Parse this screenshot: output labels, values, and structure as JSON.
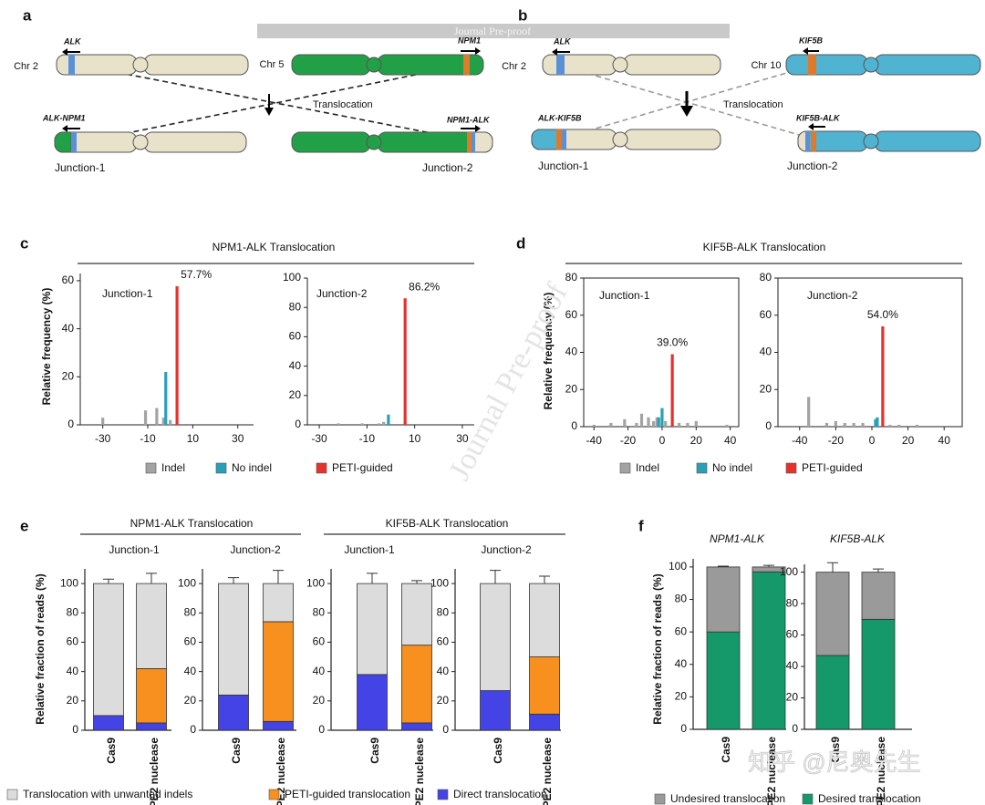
{
  "panel_labels": [
    "a",
    "b",
    "c",
    "d",
    "e",
    "f"
  ],
  "watermarks": [
    "Journal Pre-proof",
    "Journal Pre-proof",
    "知乎 @尼奥先生"
  ],
  "diagrams": [
    {
      "chr_left": "Chr 2",
      "gene_left": "ALK",
      "chr_right": "Chr 5",
      "gene_right": "NPM1",
      "arrow_label": "Translocation",
      "fusion_left": "ALK-NPM1",
      "fusion_right": "NPM1-ALK",
      "junction_left": "Junction-1",
      "junction_right": "Junction-2"
    },
    {
      "chr_left": "Chr 2",
      "gene_left": "ALK",
      "chr_right": "Chr 10",
      "gene_right": "KIF5B",
      "arrow_label": "Translocation",
      "fusion_left": "ALK-KIF5B",
      "fusion_right": "KIF5B-ALK",
      "junction_left": "Junction-1",
      "junction_right": "Junction-2"
    }
  ],
  "chart_data": [
    {
      "type": "histogram",
      "title": "NPM1-ALK Translocation",
      "ylabel": "Relative frequency (%)",
      "frame": "axes",
      "series": [
        {
          "name": "Indel",
          "color": "#a3a3a3"
        },
        {
          "name": "No indel",
          "color": "#2aa0b8"
        },
        {
          "name": "PETI-guided",
          "color": "#e8312a"
        }
      ],
      "subplots": [
        {
          "title": "Junction-1",
          "xlim": [
            -40,
            37
          ],
          "xticks": [
            -30,
            -10,
            10,
            30
          ],
          "ylim": [
            0,
            63
          ],
          "yticks": [
            0,
            20,
            40,
            60
          ],
          "series": [
            {
              "x": [
                -30,
                -11,
                -6,
                -3,
                0
              ],
              "values": [
                3,
                6,
                7,
                3,
                2
              ]
            },
            {
              "x": [
                -2
              ],
              "values": [
                22
              ]
            },
            {
              "x": [
                3
              ],
              "values": [
                57.7
              ],
              "value_labels": [
                "57.7%"
              ]
            }
          ]
        },
        {
          "title": "Junction-2",
          "xlim": [
            -35,
            35
          ],
          "xticks": [
            -30,
            -10,
            10,
            30
          ],
          "ylim": [
            0,
            100
          ],
          "yticks": [
            0,
            20,
            40,
            60,
            80,
            100
          ],
          "series": [
            {
              "x": [
                -22,
                -12,
                -5,
                -3
              ],
              "values": [
                1,
                1,
                1,
                2
              ]
            },
            {
              "x": [
                -1
              ],
              "values": [
                7
              ]
            },
            {
              "x": [
                6
              ],
              "values": [
                86.2
              ],
              "value_labels": [
                "86.2%"
              ]
            }
          ]
        }
      ]
    },
    {
      "type": "histogram",
      "title": "KIF5B-ALK Translocation",
      "ylabel": "Relative frequency (%)",
      "frame": "box",
      "series": [
        {
          "name": "Indel",
          "color": "#a3a3a3"
        },
        {
          "name": "No indel",
          "color": "#2aa0b8"
        },
        {
          "name": "PETI-guided",
          "color": "#e8312a"
        }
      ],
      "subplots": [
        {
          "title": "Junction-1",
          "xlim": [
            -46,
            45
          ],
          "xticks": [
            -40,
            -20,
            0,
            20,
            40
          ],
          "ylim": [
            0,
            80
          ],
          "yticks": [
            0,
            20,
            40,
            60,
            80
          ],
          "series": [
            {
              "x": [
                -40,
                -30,
                -22,
                -15,
                -12,
                -8,
                -5,
                -3,
                2,
                10,
                15,
                20,
                38
              ],
              "values": [
                1,
                2,
                4,
                2,
                7,
                5,
                3,
                5,
                3,
                2,
                2,
                3,
                1
              ]
            },
            {
              "x": [
                -2,
                0
              ],
              "values": [
                5,
                10
              ]
            },
            {
              "x": [
                6
              ],
              "values": [
                39.0
              ],
              "value_labels": [
                "39.0%"
              ]
            }
          ]
        },
        {
          "title": "Junction-2",
          "xlim": [
            -52,
            50
          ],
          "xticks": [
            -40,
            -20,
            0,
            20,
            40
          ],
          "ylim": [
            0,
            80
          ],
          "yticks": [
            0,
            20,
            40,
            60,
            80
          ],
          "series": [
            {
              "x": [
                -35,
                -25,
                -20,
                -15,
                -10,
                -5,
                10,
                15,
                25
              ],
              "values": [
                16,
                2,
                3,
                2,
                2,
                2,
                1,
                1,
                1
              ]
            },
            {
              "x": [
                2,
                3
              ],
              "values": [
                4,
                5
              ]
            },
            {
              "x": [
                6
              ],
              "values": [
                54.0
              ],
              "value_labels": [
                "54.0%"
              ]
            }
          ]
        }
      ]
    },
    {
      "type": "stacked-bar",
      "titles": [
        "NPM1-ALK Translocation",
        "KIF5B-ALK Translocation"
      ],
      "ylabel": "Relative fraction of reads (%)",
      "categories": [
        "Cas9",
        "PE2 nuclease"
      ],
      "series": [
        {
          "name": "Translocation with unwanted indels",
          "color": "#dcdcdc"
        },
        {
          "name": "PETI-guided translocation",
          "color": "#f7901e"
        },
        {
          "name": "Direct translocation",
          "color": "#4444e6"
        }
      ],
      "subplots": [
        {
          "title": "Junction-1",
          "ylim": [
            0,
            110
          ],
          "yticks": [
            0,
            20,
            40,
            60,
            80,
            100
          ],
          "series": [
            {
              "values": [
                90,
                58
              ],
              "errors": [
                3,
                7
              ]
            },
            {
              "values": [
                0,
                37
              ],
              "errors": [
                null,
                7
              ]
            },
            {
              "values": [
                10,
                5
              ],
              "errors": [
                4,
                1
              ]
            }
          ]
        },
        {
          "title": "Junction-2",
          "ylim": [
            0,
            110
          ],
          "yticks": [
            0,
            20,
            40,
            60,
            80,
            100
          ],
          "series": [
            {
              "values": [
                76,
                26
              ],
              "errors": [
                4,
                9
              ]
            },
            {
              "values": [
                0,
                68
              ],
              "errors": [
                null,
                12
              ]
            },
            {
              "values": [
                24,
                6
              ],
              "errors": [
                4,
                2
              ]
            }
          ]
        },
        {
          "title": "Junction-1",
          "ylim": [
            0,
            110
          ],
          "yticks": [
            0,
            20,
            40,
            60,
            80,
            100
          ],
          "series": [
            {
              "values": [
                62,
                42
              ],
              "errors": [
                7,
                2
              ]
            },
            {
              "values": [
                0,
                53
              ],
              "errors": [
                null,
                5
              ]
            },
            {
              "values": [
                38,
                5
              ],
              "errors": [
                7,
                3
              ]
            }
          ]
        },
        {
          "title": "Junction-2",
          "ylim": [
            0,
            110
          ],
          "yticks": [
            0,
            20,
            40,
            60,
            80,
            100
          ],
          "series": [
            {
              "values": [
                73,
                50
              ],
              "errors": [
                9,
                5
              ]
            },
            {
              "values": [
                0,
                39
              ],
              "errors": [
                null,
                3
              ]
            },
            {
              "values": [
                27,
                11
              ],
              "errors": [
                9,
                4
              ]
            }
          ]
        }
      ]
    },
    {
      "type": "stacked-bar",
      "ylabel": "Relative fraction of reads (%)",
      "categories": [
        "Cas9",
        "PE2 nuclease"
      ],
      "series": [
        {
          "name": "Undesired translocation",
          "color": "#9a9a9a"
        },
        {
          "name": "Desired translocation",
          "color": "#15996a"
        }
      ],
      "subplots": [
        {
          "title": "NPM1-ALK",
          "ylim": [
            0,
            105
          ],
          "yticks": [
            0,
            20,
            40,
            60,
            80,
            100
          ],
          "series": [
            {
              "values": [
                40,
                3
              ],
              "errors": [
                0.5,
                1
              ]
            },
            {
              "values": [
                60,
                97
              ],
              "errors": [
                0.5,
                0.5
              ]
            }
          ]
        },
        {
          "title": "KIF5B-ALK",
          "ylim": [
            0,
            105
          ],
          "yticks": [
            0,
            20,
            40,
            60,
            80,
            100
          ],
          "series": [
            {
              "values": [
                53,
                30
              ],
              "errors": [
                6,
                2
              ]
            },
            {
              "values": [
                47,
                70
              ],
              "errors": [
                6,
                2
              ]
            }
          ]
        }
      ]
    }
  ]
}
